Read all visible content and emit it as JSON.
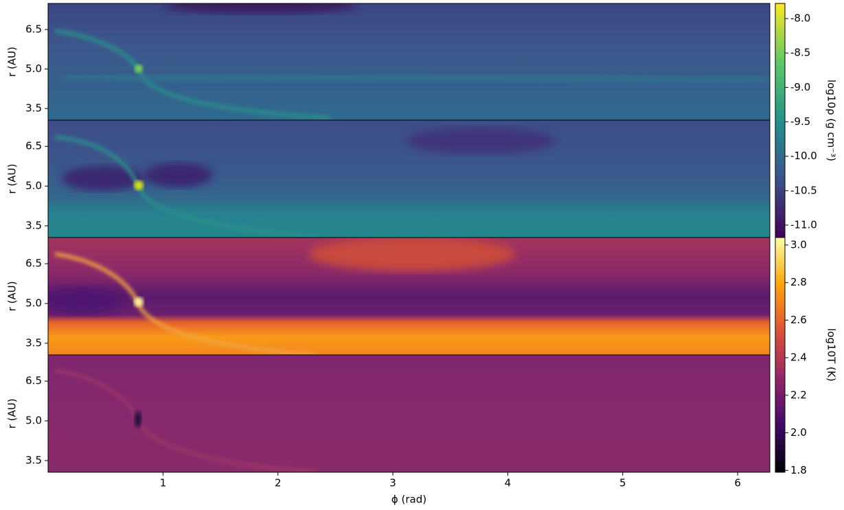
{
  "chart_data": [
    {
      "type": "heatmap",
      "ylabel": "r (AU)",
      "xlim": [
        0,
        6.28
      ],
      "ylim": [
        3.06,
        7.49
      ],
      "yticks": [
        3.5,
        {
          "value": 5,
          "label": "5.0"
        },
        6.5
      ],
      "colorbar": {
        "label": "log10ρ (g cm⁻³)",
        "colormap": "viridis",
        "lim": [
          -11.18,
          -7.78
        ],
        "ticks": [
          {
            "value": -11,
            "label": "-11.0"
          },
          -10.5,
          {
            "value": -10,
            "label": "-10.0"
          },
          -9.5,
          {
            "value": -9,
            "label": "-9.0"
          },
          -8.5,
          {
            "value": -8,
            "label": "-8.0"
          }
        ]
      }
    },
    {
      "type": "heatmap",
      "ylabel": "r (AU)",
      "xlim": [
        0,
        6.28
      ],
      "ylim": [
        3.06,
        7.49
      ],
      "yticks": [
        3.5,
        {
          "value": 5,
          "label": "5.0"
        },
        6.5
      ]
    },
    {
      "type": "heatmap",
      "ylabel": "r (AU)",
      "xlim": [
        0,
        6.28
      ],
      "ylim": [
        3.06,
        7.49
      ],
      "yticks": [
        3.5,
        {
          "value": 5,
          "label": "5.0"
        },
        6.5
      ],
      "colorbar": {
        "label": "log10T (K)",
        "colormap": "inferno",
        "lim": [
          1.79,
          3.04
        ],
        "ticks": [
          1.8,
          {
            "value": 2,
            "label": "2.0"
          },
          2.2,
          2.4,
          2.6,
          2.8,
          {
            "value": 3,
            "label": "3.0"
          }
        ]
      }
    },
    {
      "type": "heatmap",
      "ylabel": "r (AU)",
      "xlabel": "ϕ (rad)",
      "xlim": [
        0,
        6.28
      ],
      "ylim": [
        3.06,
        7.49
      ],
      "yticks": [
        3.5,
        {
          "value": 5,
          "label": "5.0"
        },
        6.5
      ],
      "xticks": [
        1,
        2,
        3,
        4,
        5,
        6
      ]
    }
  ]
}
